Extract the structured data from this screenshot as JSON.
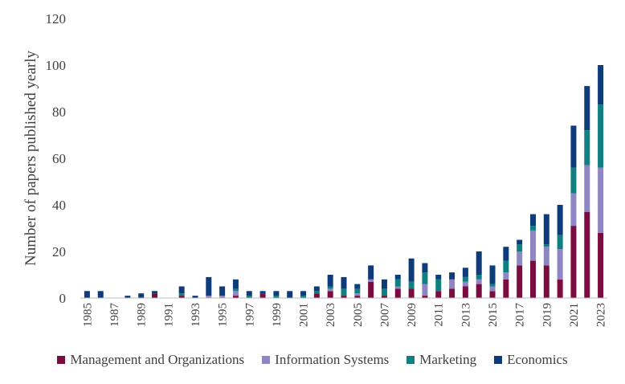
{
  "chart_data": {
    "type": "bar",
    "stacked": true,
    "title": "",
    "xlabel": "",
    "ylabel": "Number of papers published yearly",
    "ylim": [
      0,
      120
    ],
    "yticks": [
      "0",
      "20",
      "40",
      "60",
      "80",
      "100",
      "120"
    ],
    "grid": false,
    "legend_position": "bottom",
    "categories": [
      "1985",
      "1986",
      "1987",
      "1988",
      "1989",
      "1990",
      "1991",
      "1992",
      "1993",
      "1994",
      "1995",
      "1996",
      "1997",
      "1998",
      "1999",
      "2000",
      "2001",
      "2002",
      "2003",
      "2004",
      "2005",
      "2006",
      "2007",
      "2008",
      "2009",
      "2010",
      "2011",
      "2012",
      "2013",
      "2014",
      "2015",
      "2016",
      "2017",
      "2018",
      "2019",
      "2020",
      "2021",
      "2022",
      "2023"
    ],
    "xtick_labels": [
      "1985",
      "1987",
      "1989",
      "1991",
      "1993",
      "1995",
      "1997",
      "1999",
      "2001",
      "2003",
      "2005",
      "2007",
      "2009",
      "2011",
      "2013",
      "2015",
      "2017",
      "2019",
      "2021",
      "2023"
    ],
    "series": [
      {
        "name": "Management and Organizations",
        "color": "#7B0C40",
        "values": [
          0,
          0,
          0,
          0,
          0,
          2,
          0,
          1,
          0,
          0,
          0,
          1,
          0,
          2,
          0,
          0,
          0,
          2,
          3,
          1,
          1,
          7,
          1,
          4,
          4,
          1,
          3,
          4,
          5,
          6,
          3,
          8,
          14,
          16,
          14,
          8,
          31,
          37,
          28
        ]
      },
      {
        "name": "Information Systems",
        "color": "#8E86C4",
        "values": [
          0,
          0,
          0,
          0,
          0,
          0,
          0,
          0,
          0,
          1,
          1,
          2,
          0,
          0,
          0,
          0,
          0,
          0,
          1,
          0,
          1,
          1,
          0,
          1,
          0,
          5,
          0,
          4,
          2,
          2,
          2,
          3,
          6,
          13,
          8,
          13,
          14,
          20,
          28
        ]
      },
      {
        "name": "Marketing",
        "color": "#0F7F7F",
        "values": [
          0,
          0,
          0,
          0,
          0,
          0,
          0,
          1,
          0,
          0,
          0,
          1,
          1,
          0,
          1,
          0,
          1,
          1,
          1,
          3,
          2,
          0,
          3,
          3,
          3,
          5,
          5,
          0,
          2,
          2,
          1,
          5,
          3,
          2,
          1,
          6,
          11,
          15,
          27
        ]
      },
      {
        "name": "Economics",
        "color": "#0E3C7A",
        "values": [
          3,
          3,
          0,
          1,
          2,
          1,
          0,
          3,
          1,
          8,
          4,
          4,
          2,
          1,
          2,
          3,
          2,
          2,
          5,
          5,
          2,
          6,
          4,
          2,
          10,
          4,
          2,
          3,
          4,
          10,
          8,
          6,
          2,
          5,
          13,
          13,
          18,
          19,
          17
        ]
      }
    ]
  }
}
